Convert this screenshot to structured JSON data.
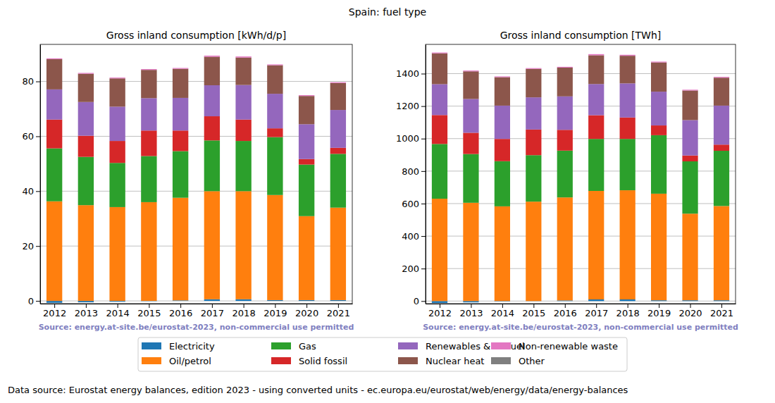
{
  "title": "Spain: fuel type",
  "footer": "Data source: Eurostat energy balances, edition 2023 - using converted units - ec.europa.eu/eurostat/web/energy/data/energy-balances",
  "chart_data": [
    {
      "type": "bar",
      "stacked": true,
      "grid": true,
      "legend": "lower center",
      "title": "Gross inland consumption [kWh/d/p]",
      "source": "Source: energy.at-site.be/eurostat-2023, non-commercial use permitted",
      "categories": [
        "2012",
        "2013",
        "2014",
        "2015",
        "2016",
        "2017",
        "2018",
        "2019",
        "2020",
        "2021"
      ],
      "ylim": [
        -1,
        93.5
      ],
      "yticks": [
        0,
        20,
        40,
        60,
        80
      ],
      "series": [
        {
          "name": "Electricity",
          "color": "#1f77b4",
          "values": [
            -0.7,
            -0.5,
            -0.3,
            -0.1,
            0.2,
            0.6,
            0.6,
            0.3,
            0.3,
            0.3
          ]
        },
        {
          "name": "Oil/petrol",
          "color": "#ff7f0e",
          "values": [
            36.3,
            34.9,
            34.2,
            36.0,
            37.4,
            39.4,
            39.4,
            38.3,
            30.6,
            33.7
          ]
        },
        {
          "name": "Gas",
          "color": "#2ca02c",
          "values": [
            19.3,
            17.6,
            16.1,
            16.8,
            17.0,
            18.5,
            18.3,
            21.1,
            18.8,
            19.6
          ]
        },
        {
          "name": "Solid fossil",
          "color": "#d62728",
          "values": [
            10.5,
            7.7,
            8.0,
            9.3,
            7.5,
            8.8,
            7.8,
            3.2,
            2.0,
            2.2
          ]
        },
        {
          "name": "Renewables & biofuel",
          "color": "#9467bd",
          "values": [
            11.0,
            12.3,
            12.5,
            11.8,
            11.9,
            11.3,
            12.6,
            12.6,
            12.7,
            13.8
          ]
        },
        {
          "name": "Nuclear heat",
          "color": "#8c564b",
          "values": [
            11.0,
            10.3,
            10.3,
            10.3,
            10.6,
            10.4,
            10.0,
            10.4,
            10.3,
            9.8
          ]
        },
        {
          "name": "Non-renewable waste",
          "color": "#e377c2",
          "values": [
            0.3,
            0.3,
            0.3,
            0.3,
            0.3,
            0.4,
            0.4,
            0.3,
            0.3,
            0.3
          ]
        },
        {
          "name": "Other",
          "color": "#7f7f7f",
          "values": [
            0,
            0,
            0,
            0,
            0,
            0,
            0,
            0,
            0,
            0
          ]
        }
      ]
    },
    {
      "type": "bar",
      "stacked": true,
      "grid": true,
      "legend": "lower center",
      "title": "Gross inland consumption [TWh]",
      "source": "Source: energy.at-site.be/eurostat-2023, non-commercial use permitted",
      "categories": [
        "2012",
        "2013",
        "2014",
        "2015",
        "2016",
        "2017",
        "2018",
        "2019",
        "2020",
        "2021"
      ],
      "ylim": [
        -16,
        1580
      ],
      "yticks": [
        0,
        200,
        400,
        600,
        800,
        1000,
        1200,
        1400
      ],
      "series": [
        {
          "name": "Electricity",
          "color": "#1f77b4",
          "values": [
            -12,
            -8,
            -3,
            -1,
            4,
            10,
            10,
            5,
            5,
            5
          ]
        },
        {
          "name": "Oil/petrol",
          "color": "#ff7f0e",
          "values": [
            630,
            605,
            583,
            612,
            634,
            668,
            672,
            656,
            533,
            580
          ]
        },
        {
          "name": "Gas",
          "color": "#2ca02c",
          "values": [
            337,
            300,
            278,
            286,
            288,
            320,
            316,
            360,
            322,
            340
          ]
        },
        {
          "name": "Solid fossil",
          "color": "#d62728",
          "values": [
            178,
            131,
            137,
            158,
            128,
            146,
            132,
            60,
            36,
            38
          ]
        },
        {
          "name": "Renewables & biofuel",
          "color": "#9467bd",
          "values": [
            190,
            208,
            205,
            198,
            206,
            192,
            210,
            208,
            218,
            240
          ]
        },
        {
          "name": "Nuclear heat",
          "color": "#8c564b",
          "values": [
            190,
            170,
            175,
            175,
            177,
            177,
            170,
            180,
            182,
            172
          ]
        },
        {
          "name": "Non-renewable waste",
          "color": "#e377c2",
          "values": [
            5,
            5,
            5,
            5,
            5,
            7,
            6,
            5,
            5,
            5
          ]
        },
        {
          "name": "Other",
          "color": "#7f7f7f",
          "values": [
            0,
            0,
            0,
            0,
            0,
            0,
            0,
            0,
            0,
            0
          ]
        }
      ]
    }
  ]
}
